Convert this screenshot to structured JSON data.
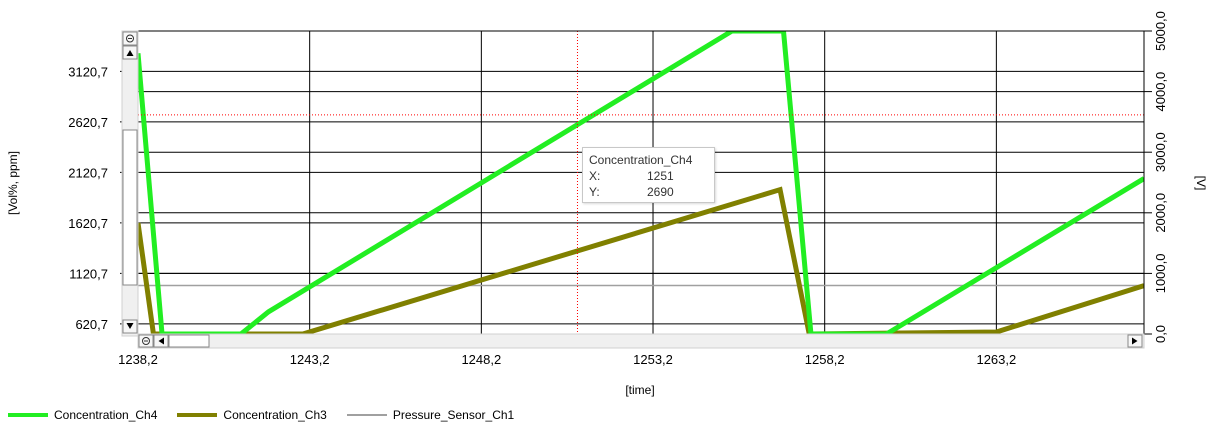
{
  "chart_data": {
    "type": "line",
    "xlabel": "[time]",
    "ylabel": "[Vol%, ppm]",
    "y2label": "[V]",
    "xlim": [
      1238.2,
      1267.5
    ],
    "ylim": [
      520.7,
      3520.7
    ],
    "y2lim": [
      0,
      5000
    ],
    "x_ticks": [
      1238.2,
      1243.2,
      1248.2,
      1253.2,
      1258.2,
      1263.2
    ],
    "x_tick_labels": [
      "1238,2",
      "1243,2",
      "1248,2",
      "1253,2",
      "1258,2",
      "1263,2"
    ],
    "y_ticks": [
      620.7,
      1120.7,
      1620.7,
      2120.7,
      2620.7,
      3120.7
    ],
    "y_tick_labels": [
      "620,7",
      "1120,7",
      "1620,7",
      "2120,7",
      "2620,7",
      "3120,7"
    ],
    "y2_ticks": [
      0,
      1000,
      2000,
      3000,
      4000,
      5000
    ],
    "y2_tick_labels": [
      "0,0",
      "1000,0",
      "2000,0",
      "3000,0",
      "4000,0",
      "5000,0"
    ],
    "grid": true,
    "legend": "bottom-left",
    "series": [
      {
        "name": "Concentration_Ch4",
        "color": "#22ee22",
        "axis": "left",
        "x": [
          1238.2,
          1238.9,
          1241.2,
          1242.0,
          1255.5,
          1257.0,
          1257.8,
          1260.0,
          1267.5
        ],
        "y": [
          3300,
          520.7,
          520.7,
          740,
          3520.7,
          3520.7,
          520.7,
          520.7,
          2060
        ]
      },
      {
        "name": "Concentration_Ch3",
        "color": "#808000",
        "axis": "left",
        "x": [
          1238.2,
          1238.65,
          1243.0,
          1256.9,
          1257.75,
          1263.2,
          1267.5
        ],
        "y": [
          1620,
          520.7,
          520.7,
          1950,
          520.7,
          540,
          1000
        ]
      },
      {
        "name": "Pressure_Sensor_Ch1",
        "color": "#a0a0a0",
        "axis": "right",
        "x": [
          1238.2,
          1267.5
        ],
        "y": [
          800,
          800
        ]
      }
    ],
    "cursor": {
      "x": 1251,
      "y": 2690
    },
    "tooltip": {
      "series": "Concentration_Ch4",
      "x_label": "X:",
      "x_value": "1251",
      "y_label": "Y:",
      "y_value": "2690"
    }
  }
}
